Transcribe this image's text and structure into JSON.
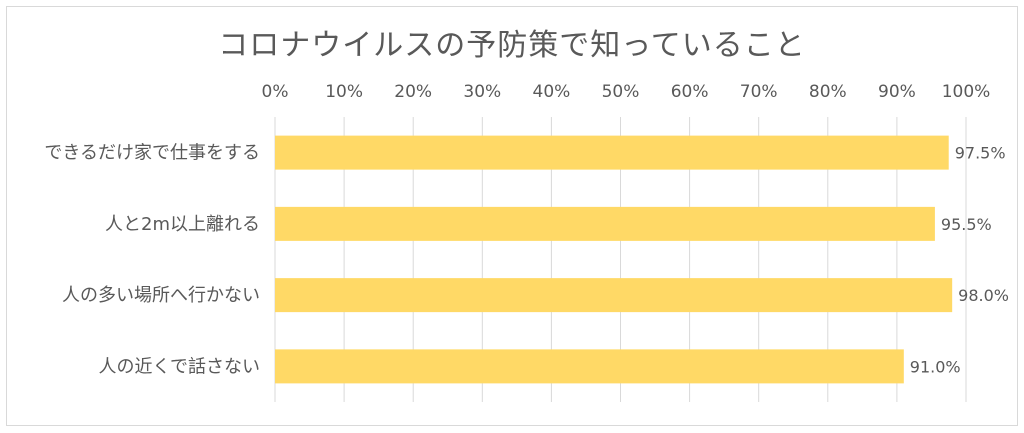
{
  "chart_data": {
    "type": "bar",
    "orientation": "horizontal",
    "title": "コロナウイルスの予防策で知っていること",
    "categories": [
      "できるだけ家で仕事をする",
      "人と2m以上離れる",
      "人の多い場所へ行かない",
      "人の近くで話さない"
    ],
    "values": [
      97.5,
      95.5,
      98.0,
      91.0
    ],
    "data_labels": [
      "97.5%",
      "95.5%",
      "98.0%",
      "91.0%"
    ],
    "x_ticks": [
      "0%",
      "10%",
      "20%",
      "30%",
      "40%",
      "50%",
      "60%",
      "70%",
      "80%",
      "90%",
      "100%"
    ],
    "xlim": [
      0,
      100
    ],
    "x_axis_position": "top",
    "grid": true,
    "legend": "none",
    "bar_color": "#FFD966",
    "grid_color": "#D9D9D9",
    "text_color": "#595959"
  }
}
